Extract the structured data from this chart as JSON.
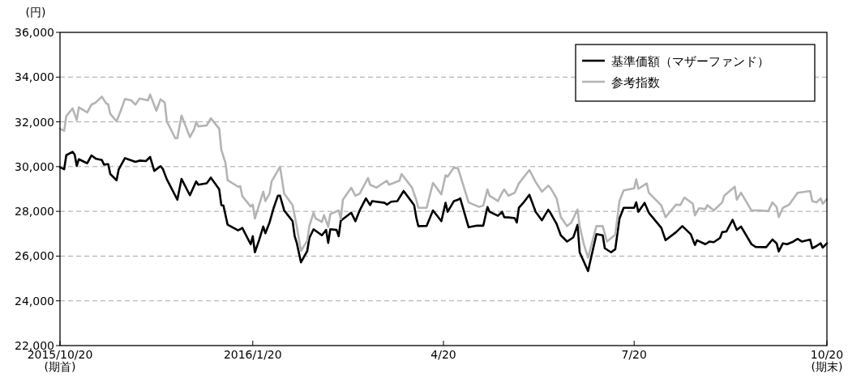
{
  "chart_data": {
    "type": "line",
    "ylabel": "(円)",
    "xlim": [
      "2015-10-20",
      "2016-10-20"
    ],
    "ylim": [
      22000,
      36000
    ],
    "xticks": [
      {
        "value": "2015-10-20",
        "label": "2015/10/20\n(期首)"
      },
      {
        "value": "2016-01-20",
        "label": "2016/1/20"
      },
      {
        "value": "2016-04-20",
        "label": "4/20"
      },
      {
        "value": "2016-07-20",
        "label": "7/20"
      },
      {
        "value": "2016-10-20",
        "label": "10/20\n(期末)"
      }
    ],
    "yticks": [
      {
        "value": 22000,
        "label": "22,000"
      },
      {
        "value": 24000,
        "label": "24,000"
      },
      {
        "value": 26000,
        "label": "26,000"
      },
      {
        "value": 28000,
        "label": "28,000"
      },
      {
        "value": 30000,
        "label": "30,000"
      },
      {
        "value": 32000,
        "label": "32,000"
      },
      {
        "value": 34000,
        "label": "34,000"
      },
      {
        "value": 36000,
        "label": "36,000"
      }
    ],
    "grid": "y",
    "legend": "top right",
    "line_style": "solid",
    "marker": "none",
    "series": [
      {
        "name": "基準価額（マザーファンド）",
        "color": "#000000",
        "x": [
          "2015-10-20",
          "2015-10-22",
          "2015-10-23",
          "2015-10-26",
          "2015-10-27",
          "2015-10-28",
          "2015-10-29",
          "2015-11-02",
          "2015-11-04",
          "2015-11-06",
          "2015-11-09",
          "2015-11-10",
          "2015-11-12",
          "2015-11-13",
          "2015-11-16",
          "2015-11-17",
          "2015-11-20",
          "2015-11-22",
          "2015-11-25",
          "2015-11-27",
          "2015-11-30",
          "2015-12-02",
          "2015-12-04",
          "2015-12-07",
          "2015-12-08",
          "2015-12-10",
          "2015-12-15",
          "2015-12-17",
          "2015-12-21",
          "2015-12-24",
          "2015-12-25",
          "2015-12-29",
          "2015-12-31",
          "2016-01-04",
          "2016-01-05",
          "2016-01-06",
          "2016-01-08",
          "2016-01-13",
          "2016-01-14",
          "2016-01-15",
          "2016-01-19",
          "2016-01-20",
          "2016-01-21",
          "2016-01-23",
          "2016-01-25",
          "2016-01-26",
          "2016-01-28",
          "2016-01-30",
          "2016-02-01",
          "2016-02-02",
          "2016-02-04",
          "2016-02-06",
          "2016-02-08",
          "2016-02-09",
          "2016-02-10",
          "2016-02-12",
          "2016-02-15",
          "2016-02-16",
          "2016-02-18",
          "2016-02-22",
          "2016-02-24",
          "2016-02-25",
          "2016-02-26",
          "2016-02-29",
          "2016-03-01",
          "2016-03-02",
          "2016-03-07",
          "2016-03-09",
          "2016-03-11",
          "2016-03-14",
          "2016-03-16",
          "2016-03-17",
          "2016-03-23",
          "2016-03-24",
          "2016-03-26",
          "2016-03-29",
          "2016-04-01",
          "2016-04-06",
          "2016-04-07",
          "2016-04-08",
          "2016-04-12",
          "2016-04-15",
          "2016-04-19",
          "2016-04-21",
          "2016-04-22",
          "2016-04-25",
          "2016-04-27",
          "2016-04-28",
          "2016-05-02",
          "2016-05-06",
          "2016-05-09",
          "2016-05-11",
          "2016-05-12",
          "2016-05-16",
          "2016-05-18",
          "2016-05-19",
          "2016-05-21",
          "2016-05-24",
          "2016-05-25",
          "2016-05-26",
          "2016-05-28",
          "2016-05-31",
          "2016-06-03",
          "2016-06-06",
          "2016-06-09",
          "2016-06-10",
          "2016-06-13",
          "2016-06-15",
          "2016-06-18",
          "2016-06-21",
          "2016-06-23",
          "2016-06-24",
          "2016-06-26",
          "2016-06-28",
          "2016-07-02",
          "2016-07-05",
          "2016-07-06",
          "2016-07-09",
          "2016-07-11",
          "2016-07-13",
          "2016-07-15",
          "2016-07-20",
          "2016-07-21",
          "2016-07-22",
          "2016-07-25",
          "2016-07-27",
          "2016-08-02",
          "2016-08-04",
          "2016-08-09",
          "2016-08-12",
          "2016-08-16",
          "2016-08-18",
          "2016-08-19",
          "2016-08-23",
          "2016-08-25",
          "2016-08-27",
          "2016-08-30",
          "2016-08-31",
          "2016-09-02",
          "2016-09-05",
          "2016-09-07",
          "2016-09-09",
          "2016-09-14",
          "2016-09-16",
          "2016-09-21",
          "2016-09-24",
          "2016-09-26",
          "2016-09-27",
          "2016-09-29",
          "2016-10-01",
          "2016-10-04",
          "2016-10-06",
          "2016-10-08",
          "2016-10-12",
          "2016-10-13",
          "2016-10-15",
          "2016-10-17",
          "2016-10-18",
          "2016-10-20"
        ],
        "values": [
          29970,
          29880,
          30510,
          30660,
          30540,
          30030,
          30330,
          30150,
          30500,
          30360,
          30290,
          30090,
          30110,
          29670,
          29390,
          29870,
          30380,
          30310,
          30210,
          30270,
          30250,
          30430,
          29810,
          30020,
          29910,
          29430,
          28520,
          29450,
          28720,
          29340,
          29190,
          29250,
          29510,
          28980,
          28280,
          28260,
          27400,
          27150,
          27200,
          27260,
          26530,
          26890,
          26170,
          26710,
          27320,
          27020,
          27500,
          28160,
          28700,
          28700,
          28040,
          27800,
          27560,
          26890,
          26590,
          25720,
          26230,
          26810,
          27200,
          26930,
          27170,
          26590,
          27200,
          27170,
          26890,
          27580,
          27940,
          27560,
          28040,
          28580,
          28280,
          28460,
          28380,
          28300,
          28430,
          28460,
          28910,
          28280,
          27740,
          27340,
          27350,
          28040,
          27560,
          28380,
          27980,
          28460,
          28520,
          28580,
          27290,
          27360,
          27360,
          28190,
          27980,
          27800,
          27980,
          27740,
          27730,
          27700,
          27500,
          28160,
          28370,
          28740,
          27980,
          27600,
          28070,
          27940,
          27440,
          26930,
          26650,
          26840,
          27400,
          26170,
          25750,
          25330,
          26980,
          26930,
          26350,
          26170,
          26310,
          27680,
          28160,
          28160,
          28400,
          27980,
          28380,
          27940,
          27260,
          26710,
          27070,
          27340,
          26980,
          26500,
          26710,
          26530,
          26650,
          26620,
          26810,
          27070,
          27100,
          27620,
          27170,
          27320,
          26530,
          26410,
          26400,
          26740,
          26570,
          26210,
          26570,
          26530,
          26650,
          26770,
          26650,
          26740,
          26350,
          26450,
          26570,
          26380,
          26570
        ]
      },
      {
        "name": "参考指数",
        "color": "#b4b4b4",
        "x": [
          "2015-10-20",
          "2015-10-22",
          "2015-10-23",
          "2015-10-26",
          "2015-10-28",
          "2015-10-29",
          "2015-11-02",
          "2015-11-04",
          "2015-11-06",
          "2015-11-09",
          "2015-11-11",
          "2015-11-12",
          "2015-11-13",
          "2015-11-16",
          "2015-11-18",
          "2015-11-20",
          "2015-11-23",
          "2015-11-25",
          "2015-11-27",
          "2015-12-01",
          "2015-12-02",
          "2015-12-05",
          "2015-12-07",
          "2015-12-09",
          "2015-12-10",
          "2015-12-14",
          "2015-12-15",
          "2015-12-17",
          "2015-12-21",
          "2015-12-23",
          "2015-12-24",
          "2015-12-25",
          "2015-12-29",
          "2015-12-31",
          "2016-01-04",
          "2016-01-05",
          "2016-01-07",
          "2016-01-08",
          "2016-01-13",
          "2016-01-14",
          "2016-01-15",
          "2016-01-19",
          "2016-01-20",
          "2016-01-21",
          "2016-01-23",
          "2016-01-25",
          "2016-01-26",
          "2016-01-28",
          "2016-01-29",
          "2016-02-02",
          "2016-02-04",
          "2016-02-08",
          "2016-02-10",
          "2016-02-12",
          "2016-02-15",
          "2016-02-16",
          "2016-02-18",
          "2016-02-19",
          "2016-02-22",
          "2016-02-23",
          "2016-02-25",
          "2016-02-26",
          "2016-03-01",
          "2016-03-02",
          "2016-03-03",
          "2016-03-07",
          "2016-03-09",
          "2016-03-11",
          "2016-03-15",
          "2016-03-16",
          "2016-03-19",
          "2016-03-24",
          "2016-03-25",
          "2016-03-30",
          "2016-03-31",
          "2016-04-05",
          "2016-04-07",
          "2016-04-08",
          "2016-04-12",
          "2016-04-15",
          "2016-04-19",
          "2016-04-21",
          "2016-04-22",
          "2016-04-25",
          "2016-04-27",
          "2016-05-02",
          "2016-05-07",
          "2016-05-09",
          "2016-05-11",
          "2016-05-12",
          "2016-05-16",
          "2016-05-18",
          "2016-05-19",
          "2016-05-21",
          "2016-05-24",
          "2016-05-26",
          "2016-05-31",
          "2016-06-03",
          "2016-06-06",
          "2016-06-09",
          "2016-06-10",
          "2016-06-13",
          "2016-06-15",
          "2016-06-18",
          "2016-06-20",
          "2016-06-23",
          "2016-06-24",
          "2016-06-26",
          "2016-06-28",
          "2016-07-02",
          "2016-07-05",
          "2016-07-07",
          "2016-07-11",
          "2016-07-13",
          "2016-07-15",
          "2016-07-20",
          "2016-07-21",
          "2016-07-22",
          "2016-07-26",
          "2016-07-27",
          "2016-08-02",
          "2016-08-04",
          "2016-08-09",
          "2016-08-11",
          "2016-08-13",
          "2016-08-17",
          "2016-08-18",
          "2016-08-20",
          "2016-08-23",
          "2016-08-24",
          "2016-08-27",
          "2016-08-31",
          "2016-09-01",
          "2016-09-06",
          "2016-09-07",
          "2016-09-09",
          "2016-09-14",
          "2016-09-18",
          "2016-09-22",
          "2016-09-24",
          "2016-09-26",
          "2016-09-27",
          "2016-09-29",
          "2016-10-02",
          "2016-10-06",
          "2016-10-12",
          "2016-10-13",
          "2016-10-15",
          "2016-10-17",
          "2016-10-18",
          "2016-10-20"
        ],
        "values": [
          31690,
          31600,
          32260,
          32600,
          32080,
          32650,
          32420,
          32770,
          32860,
          33130,
          32830,
          32780,
          32360,
          32020,
          32500,
          33020,
          32960,
          32770,
          33040,
          32960,
          33220,
          32500,
          33010,
          32860,
          32020,
          31270,
          31270,
          32280,
          31320,
          31660,
          32000,
          31800,
          31840,
          32160,
          31690,
          30750,
          30150,
          29390,
          29100,
          29130,
          28680,
          28220,
          28300,
          27680,
          28280,
          28880,
          28460,
          28790,
          29340,
          29990,
          28790,
          28280,
          27320,
          26230,
          26690,
          27340,
          27940,
          27680,
          27530,
          27830,
          27320,
          27880,
          28040,
          27650,
          28520,
          29050,
          28700,
          28790,
          29490,
          29190,
          29060,
          29370,
          29190,
          29370,
          29670,
          29060,
          28520,
          28160,
          28160,
          29270,
          28760,
          29610,
          29550,
          29970,
          29910,
          28400,
          28200,
          28260,
          28980,
          28700,
          28460,
          28830,
          28980,
          28700,
          28830,
          29250,
          29850,
          29310,
          28880,
          29150,
          29060,
          28580,
          27740,
          27340,
          27500,
          28080,
          27340,
          26530,
          25930,
          27340,
          27340,
          26650,
          26960,
          28460,
          28940,
          29030,
          29430,
          29010,
          29250,
          28830,
          28260,
          27740,
          28300,
          28280,
          28620,
          28340,
          27820,
          28140,
          28100,
          28280,
          28040,
          28400,
          28700,
          29100,
          28520,
          28830,
          28040,
          28040,
          28010,
          28400,
          28190,
          27740,
          28160,
          28300,
          28830,
          28910,
          28460,
          28400,
          28580,
          28340,
          28550
        ]
      }
    ]
  }
}
